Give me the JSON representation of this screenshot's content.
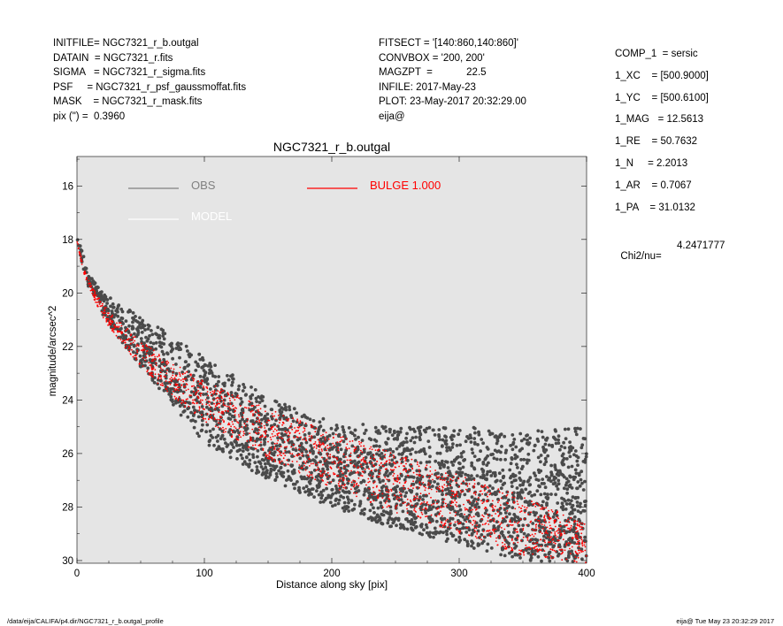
{
  "header_left": [
    "INITFILE= NGC7321_r_b.outgal",
    "DATAIN  = NGC7321_r.fits",
    "SIGMA   = NGC7321_r_sigma.fits",
    "PSF     = NGC7321_r_psf_gaussmoffat.fits",
    "MASK    = NGC7321_r_mask.fits",
    "pix (\") =  0.3960"
  ],
  "header_mid": [
    "FITSECT = '[140:860,140:860]'",
    "CONVBOX = '200, 200'",
    "MAGZPT  =            22.5",
    "INFILE: 2017-May-23",
    "PLOT: 23-May-2017 20:32:29.00",
    "eija@"
  ],
  "header_right": [
    "COMP_1  = sersic",
    "1_XC    = [500.9000]",
    "1_YC    = [500.6100]",
    "1_MAG   = 12.5613",
    "1_RE    = 50.7632",
    "1_N     = 2.2013",
    "1_AR    = 0.7067",
    "1_PA    = 31.0132"
  ],
  "chi2": {
    "label": "Chi2/nu=",
    "value": "4.2471777"
  },
  "footer": {
    "left": "/data/eija/CALIFA/p4.dir/NGC7321_r_b.outgal_profile",
    "right": "eija@  Tue May 23 20:32:29 2017"
  },
  "chart_data": {
    "type": "scatter",
    "title": "NGC7321_r_b.outgal",
    "xlabel": "Distance along sky [pix]",
    "ylabel": "magnitude/arcsec^2",
    "xlim": [
      0,
      400
    ],
    "ylim": [
      30.1,
      14.9
    ],
    "y_inverted": true,
    "xticks": [
      0,
      100,
      200,
      300,
      400
    ],
    "yticks": [
      16,
      18,
      20,
      22,
      24,
      26,
      28,
      30
    ],
    "legend": [
      {
        "name": "OBS",
        "color": "#808080"
      },
      {
        "name": "MODEL",
        "color": "#ffffff"
      },
      {
        "name": "BULGE  1.000",
        "color": "#ff0000"
      }
    ],
    "series": [
      {
        "name": "OBS",
        "color": "#4a4a4a",
        "x": [
          0,
          5,
          10,
          20,
          30,
          50,
          75,
          100,
          150,
          200,
          250,
          300,
          350,
          400
        ],
        "y_upper": [
          17.7,
          18.6,
          19.3,
          20.0,
          20.3,
          20.9,
          21.6,
          22.4,
          23.9,
          24.8,
          25.0,
          25.0,
          25.1,
          25.0
        ],
        "y_lower": [
          18.2,
          19.3,
          19.9,
          20.8,
          21.5,
          22.8,
          24.2,
          25.6,
          27.0,
          28.0,
          28.8,
          29.4,
          30.0,
          30.1
        ]
      },
      {
        "name": "BULGE  1.000",
        "color": "#ff0000",
        "x": [
          0,
          5,
          10,
          20,
          30,
          50,
          75,
          100,
          150,
          200,
          250,
          300,
          350,
          400
        ],
        "y_upper": [
          18.0,
          19.0,
          19.6,
          20.4,
          20.9,
          21.8,
          22.6,
          23.3,
          24.3,
          25.2,
          26.0,
          26.8,
          27.6,
          28.6
        ],
        "y_lower": [
          18.1,
          19.2,
          19.9,
          20.9,
          21.6,
          22.8,
          23.9,
          24.8,
          26.2,
          27.3,
          28.2,
          29.0,
          29.8,
          30.1
        ]
      }
    ]
  }
}
